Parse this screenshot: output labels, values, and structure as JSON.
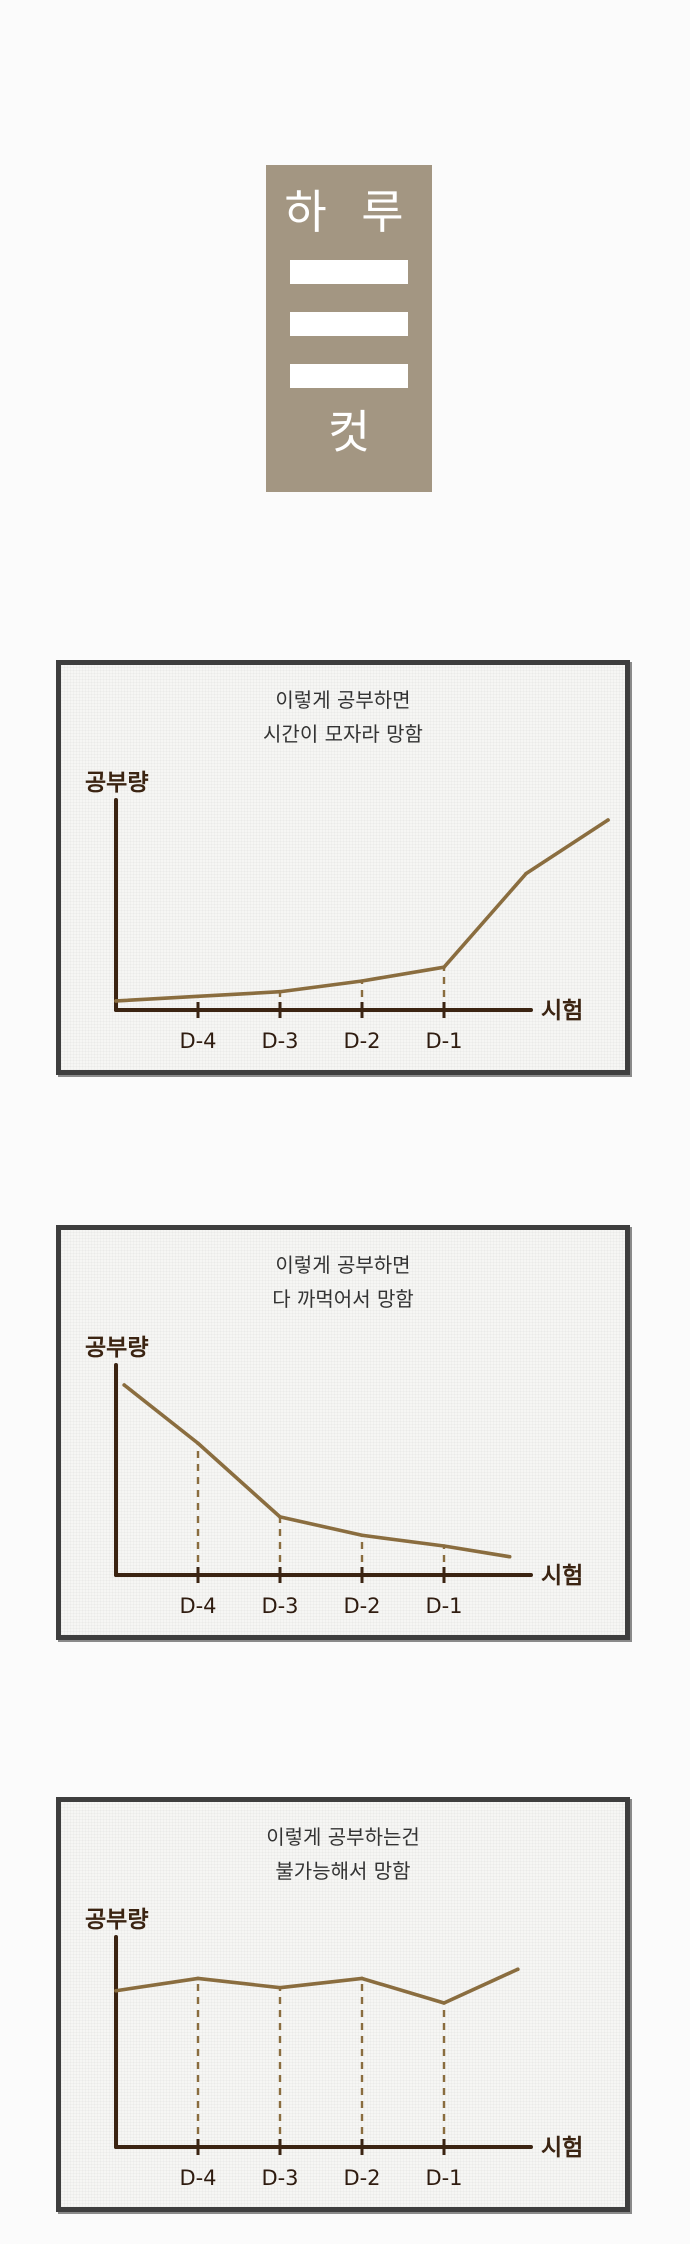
{
  "title_card": {
    "top": "하 루",
    "bottom": "컷",
    "bar_count": 3,
    "bg": "#a39682"
  },
  "panels": [
    {
      "caption": [
        "이렇게 공부하면",
        "시간이 모자라 망함"
      ],
      "chart_data": {
        "type": "line",
        "ylabel": "공부량",
        "xlabel": "시험",
        "categories": [
          "D-4",
          "D-3",
          "D-2",
          "D-1"
        ],
        "series": [
          {
            "x": [
              0,
              1,
              2,
              3,
              4,
              5,
              6
            ],
            "y": [
              2,
              5,
              8,
              15,
              24,
              85,
              120
            ]
          }
        ]
      }
    },
    {
      "caption": [
        "이렇게 공부하면",
        "다 까먹어서 망함"
      ],
      "chart_data": {
        "type": "line",
        "ylabel": "공부량",
        "xlabel": "시험",
        "categories": [
          "D-4",
          "D-3",
          "D-2",
          "D-1"
        ],
        "series": [
          {
            "x": [
              0.1,
              1,
              2,
              3,
              4,
              4.8
            ],
            "y": [
              120,
              82,
              34,
              22,
              15,
              8
            ]
          }
        ]
      }
    },
    {
      "caption": [
        "이렇게 공부하는건",
        "불가능해서 망함"
      ],
      "chart_data": {
        "type": "line",
        "ylabel": "공부량",
        "xlabel": "시험",
        "categories": [
          "D-4",
          "D-3",
          "D-2",
          "D-1"
        ],
        "series": [
          {
            "x": [
              0,
              1,
              2,
              3,
              4,
              4.9
            ],
            "y": [
              98,
              106,
              100,
              106,
              90,
              112
            ]
          }
        ]
      }
    }
  ],
  "colors": {
    "curve": "#8a6d3f",
    "axis": "#3b2412",
    "dash": "#8a6d3f"
  }
}
